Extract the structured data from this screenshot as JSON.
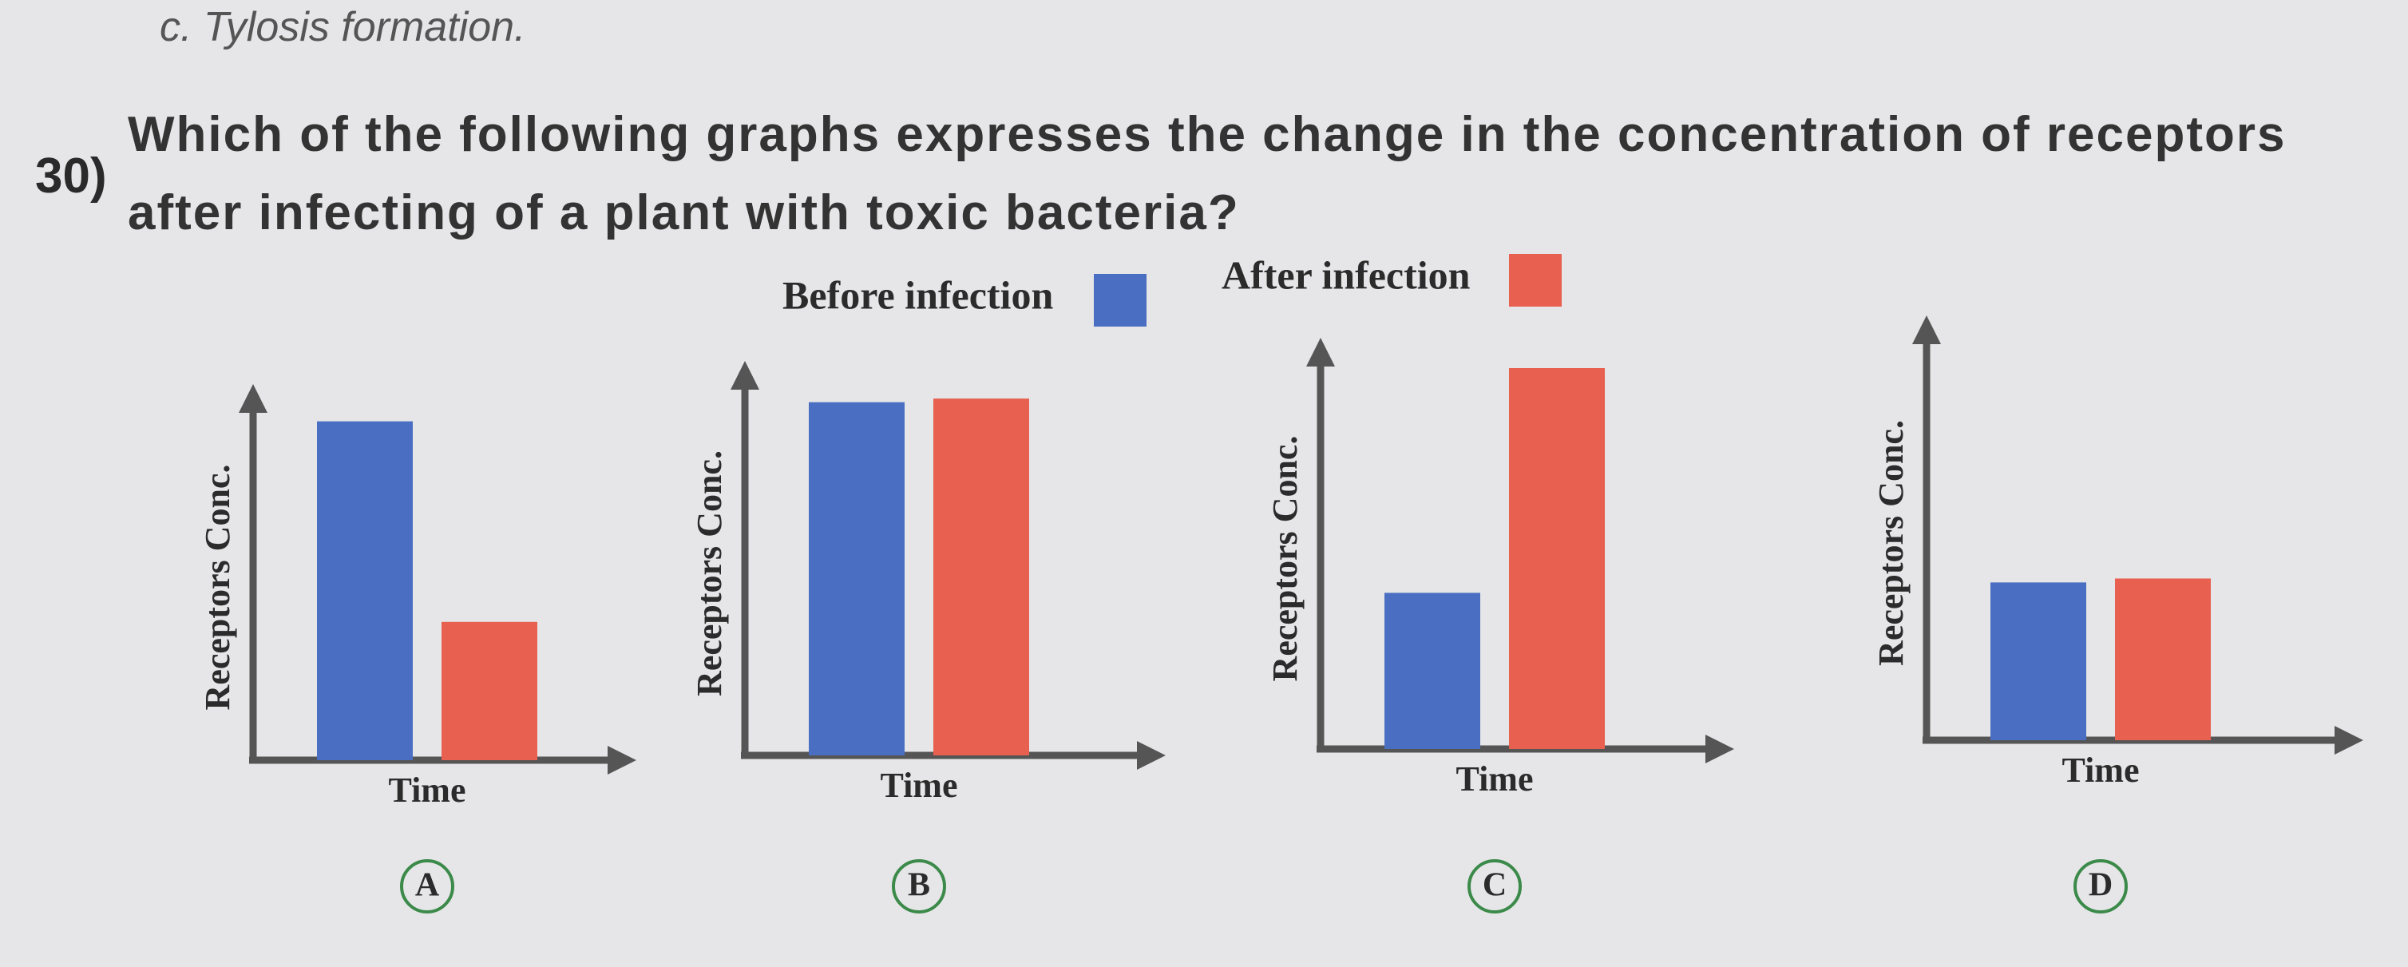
{
  "prior_option": "c. Tylosis formation.",
  "question_number": "30)",
  "question_text": "Which of the following graphs expresses the change in the concentration of receptors after infecting of a plant with toxic bacteria?",
  "legend": [
    {
      "name": "Before infection",
      "color": "#4a6fc2"
    },
    {
      "name": "After infection",
      "color": "#e8604f"
    }
  ],
  "chart_data": [
    {
      "type": "bar",
      "option": "A",
      "y_label": "Receptors Conc.",
      "x_label": "Time",
      "categories": [
        null
      ],
      "ylim": [
        0,
        100
      ],
      "series": [
        {
          "values": [
            98
          ]
        },
        {
          "values": [
            40
          ]
        }
      ]
    },
    {
      "type": "bar",
      "option": "B",
      "y_label": "Receptors Conc.",
      "x_label": "Time",
      "categories": [
        null
      ],
      "ylim": [
        0,
        100
      ],
      "series": [
        {
          "values": [
            97
          ]
        },
        {
          "values": [
            98
          ]
        }
      ]
    },
    {
      "type": "bar",
      "option": "C",
      "y_label": "Receptors Conc.",
      "x_label": "Time",
      "categories": [
        null
      ],
      "ylim": [
        0,
        100
      ],
      "series": [
        {
          "values": [
            41
          ]
        },
        {
          "values": [
            100
          ]
        }
      ]
    },
    {
      "type": "bar",
      "option": "D",
      "y_label": "Receptors Conc.",
      "x_label": "Time",
      "categories": [
        null
      ],
      "ylim": [
        0,
        100
      ],
      "series": [
        {
          "values": [
            40
          ]
        },
        {
          "values": [
            41
          ]
        }
      ]
    }
  ]
}
